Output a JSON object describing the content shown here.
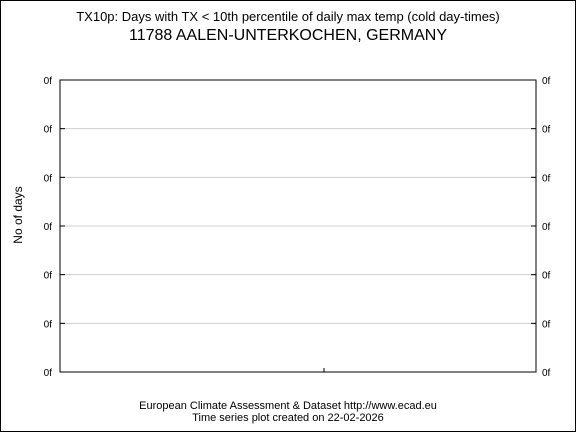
{
  "header": {
    "title": "TX10p: Days with TX < 10th percentile of daily max temp (cold day-times)",
    "station": "11788 AALEN-UNTERKOCHEN, GERMANY"
  },
  "footer": {
    "line1": "European Climate Assessment & Dataset  http://www.ecad.eu",
    "line2": "Time series plot created on 22-02-2026"
  },
  "chart_data": {
    "type": "line",
    "title": "TX10p: Days with TX < 10th percentile of daily max temp (cold day-times)",
    "subtitle": "11788 AALEN-UNTERKOCHEN, GERMANY",
    "ylabel": "No of days",
    "xlabel": "",
    "y_tick_labels": [
      "0f",
      "0f",
      "0f",
      "0f",
      "0f",
      "0f",
      "0f"
    ],
    "series": [],
    "grid": true,
    "y_ticks_both_sides": true
  }
}
